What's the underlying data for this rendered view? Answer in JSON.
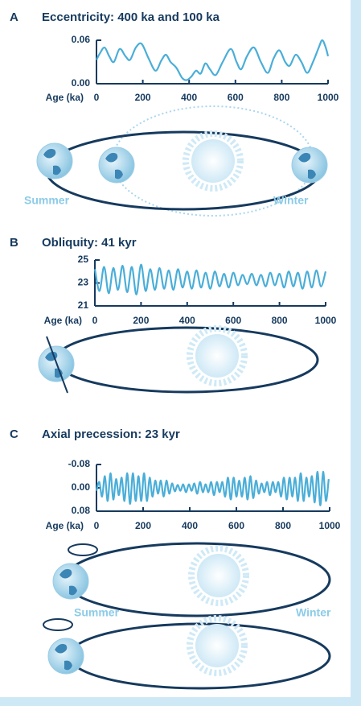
{
  "chart_data": [
    {
      "type": "line",
      "panel": "A",
      "title": "Eccentricity: 400 ka and 100 ka",
      "xlabel": "Age (ka)",
      "color": "#4aaed8",
      "x": [
        0,
        15,
        35,
        55,
        75,
        100,
        125,
        145,
        170,
        195,
        225,
        255,
        280,
        300,
        320,
        345,
        370,
        390,
        410,
        430,
        450,
        470,
        490,
        515,
        545,
        580,
        605,
        625,
        650,
        680,
        710,
        740,
        765,
        790,
        815,
        835,
        860,
        885,
        910,
        935,
        960,
        975,
        990,
        1000
      ],
      "values": [
        0.033,
        0.042,
        0.05,
        0.038,
        0.03,
        0.048,
        0.038,
        0.033,
        0.05,
        0.055,
        0.035,
        0.018,
        0.032,
        0.04,
        0.03,
        0.022,
        0.008,
        0.005,
        0.01,
        0.018,
        0.014,
        0.028,
        0.02,
        0.012,
        0.03,
        0.048,
        0.03,
        0.02,
        0.038,
        0.05,
        0.03,
        0.015,
        0.035,
        0.046,
        0.03,
        0.025,
        0.04,
        0.03,
        0.015,
        0.03,
        0.05,
        0.06,
        0.05,
        0.038
      ],
      "xlim": [
        0,
        1000
      ],
      "xticks": [
        0,
        200,
        400,
        600,
        800,
        1000
      ],
      "ylim": [
        0,
        0.06
      ],
      "yticks": [
        0.06,
        {
          "value": 0,
          "label": "0.00"
        }
      ],
      "annotations": [
        "Summer",
        "Winter"
      ]
    },
    {
      "type": "line",
      "panel": "B",
      "title": "Obliquity: 41 kyr",
      "xlabel": "Age (ka)",
      "color": "#4aaed8",
      "x": [
        0,
        20,
        40,
        60,
        80,
        100,
        120,
        140,
        160,
        180,
        200,
        220,
        240,
        260,
        280,
        300,
        320,
        340,
        360,
        380,
        400,
        420,
        440,
        460,
        480,
        500,
        520,
        540,
        560,
        580,
        600,
        620,
        640,
        660,
        680,
        700,
        720,
        740,
        760,
        780,
        800,
        820,
        840,
        860,
        880,
        900,
        920,
        940,
        960,
        980,
        1000
      ],
      "values": [
        24.2,
        22.3,
        24.4,
        22.1,
        24.3,
        22.4,
        24.5,
        22.2,
        24.4,
        22.0,
        24.6,
        22.3,
        24.2,
        22.4,
        24.3,
        22.5,
        24.1,
        22.4,
        24.2,
        22.6,
        24.0,
        22.5,
        24.1,
        22.6,
        23.9,
        22.5,
        24.0,
        22.7,
        23.8,
        22.6,
        23.9,
        22.8,
        23.7,
        22.9,
        23.8,
        22.8,
        23.7,
        22.7,
        23.9,
        22.8,
        23.8,
        22.6,
        24.0,
        22.7,
        23.9,
        22.5,
        24.0,
        22.6,
        24.1,
        22.7,
        24.0
      ],
      "xlim": [
        0,
        1000
      ],
      "xticks": [
        0,
        200,
        400,
        600,
        800,
        1000
      ],
      "ylim": [
        21,
        25
      ],
      "yticks": [
        25,
        23,
        21
      ]
    },
    {
      "type": "line",
      "panel": "C",
      "title": "Axial precession: 23 kyr",
      "xlabel": "Age (ka)",
      "color": "#4aaed8",
      "x": [
        0,
        12,
        24,
        36,
        48,
        60,
        72,
        84,
        96,
        108,
        120,
        132,
        144,
        156,
        168,
        180,
        192,
        204,
        216,
        228,
        240,
        252,
        264,
        276,
        288,
        300,
        312,
        324,
        336,
        348,
        360,
        372,
        384,
        396,
        408,
        420,
        432,
        444,
        456,
        468,
        480,
        492,
        504,
        516,
        528,
        540,
        552,
        564,
        576,
        588,
        600,
        612,
        624,
        636,
        648,
        660,
        672,
        684,
        696,
        708,
        720,
        732,
        744,
        756,
        768,
        780,
        792,
        804,
        816,
        828,
        840,
        852,
        864,
        876,
        888,
        900,
        912,
        924,
        936,
        948,
        960,
        972,
        984,
        996
      ],
      "values": [
        0.01,
        -0.02,
        0.03,
        -0.04,
        0.045,
        -0.05,
        0.04,
        -0.03,
        0.025,
        -0.035,
        0.045,
        -0.05,
        0.055,
        -0.05,
        0.045,
        -0.04,
        0.045,
        -0.05,
        0.045,
        -0.035,
        0.03,
        -0.025,
        0.02,
        -0.025,
        0.03,
        -0.025,
        0.02,
        -0.015,
        0.012,
        -0.01,
        0.01,
        -0.012,
        0.015,
        -0.012,
        0.01,
        -0.015,
        0.02,
        -0.02,
        0.015,
        -0.012,
        0.015,
        -0.02,
        0.025,
        -0.02,
        0.015,
        -0.02,
        0.03,
        -0.035,
        0.04,
        -0.035,
        0.03,
        -0.025,
        0.03,
        -0.035,
        0.04,
        -0.04,
        0.035,
        -0.025,
        0.02,
        -0.015,
        0.015,
        -0.02,
        0.025,
        -0.02,
        0.015,
        -0.02,
        0.03,
        -0.035,
        0.04,
        -0.035,
        0.03,
        -0.035,
        0.045,
        -0.05,
        0.045,
        -0.035,
        0.03,
        -0.04,
        0.05,
        -0.055,
        0.06,
        -0.055,
        0.045,
        -0.03
      ],
      "xlim": [
        0,
        1000
      ],
      "xticks": [
        0,
        200,
        400,
        600,
        800,
        1000
      ],
      "ylim": [
        0.08,
        -0.08
      ],
      "yticks": [
        -0.08,
        {
          "value": 0,
          "label": "0.00"
        },
        0.08
      ],
      "annotations": [
        "Summer",
        "Winter"
      ]
    }
  ]
}
